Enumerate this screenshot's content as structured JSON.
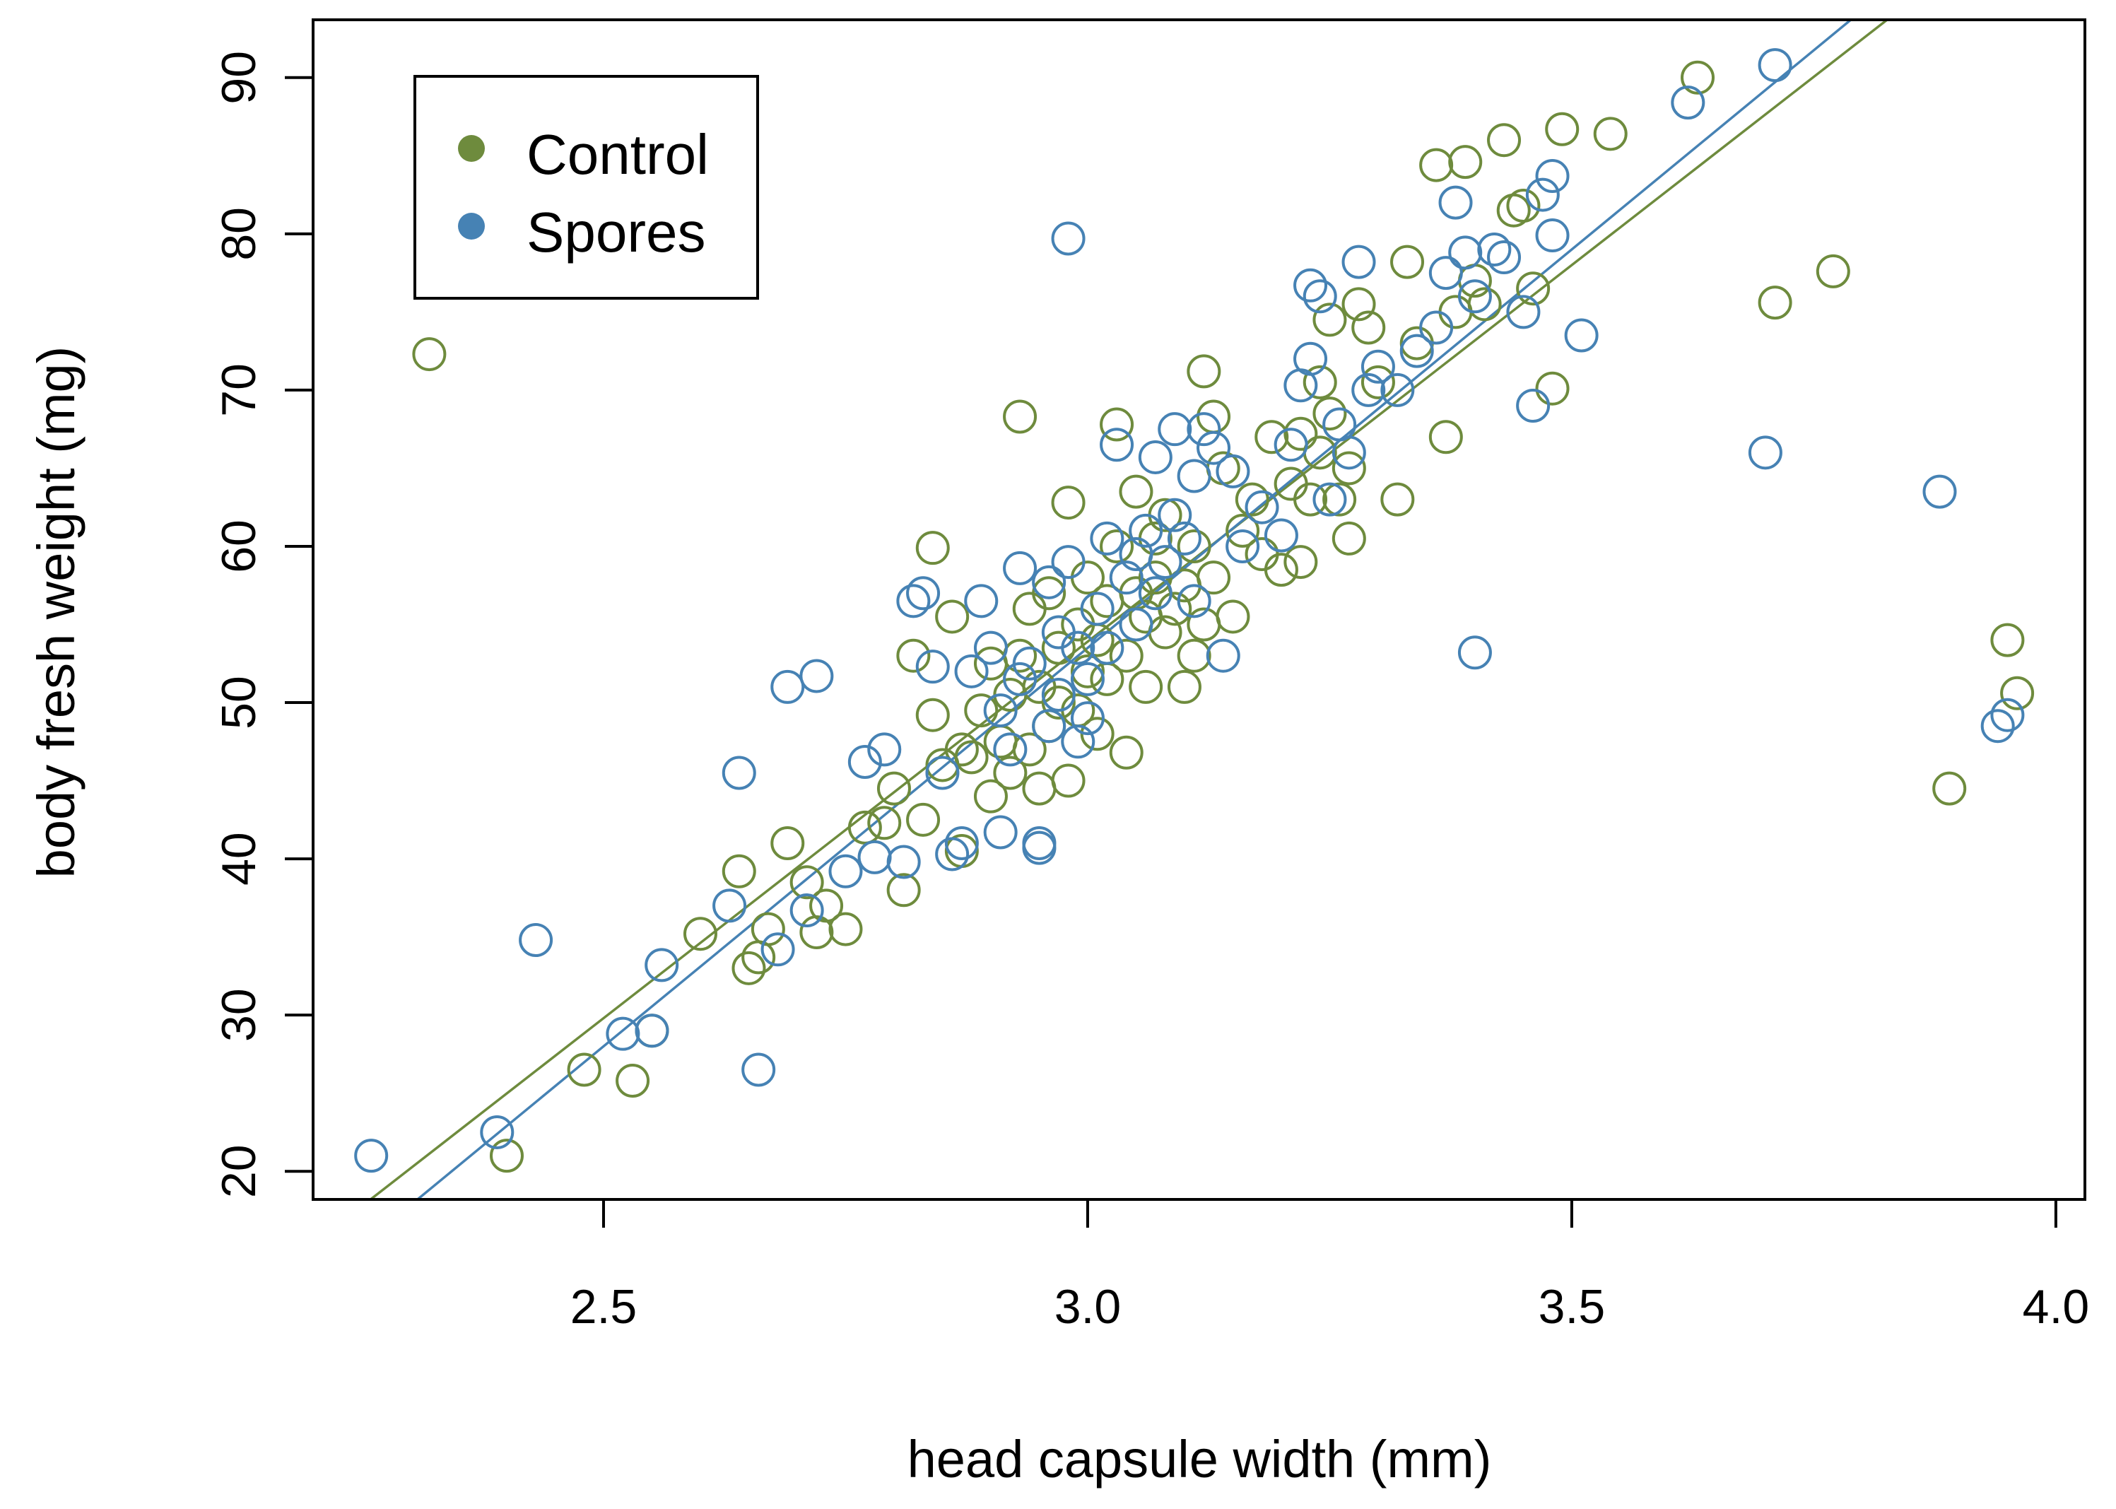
{
  "chart_data": {
    "type": "scatter",
    "title": "",
    "xlabel": "head capsule width (mm)",
    "ylabel": "body fresh weight (mg)",
    "xlim": [
      2.2,
      4.03
    ],
    "ylim": [
      18.2,
      93.7
    ],
    "x_ticks": [
      2.5,
      3.0,
      3.5,
      4.0
    ],
    "x_tick_labels": [
      "2.5",
      "3.0",
      "3.5",
      "4.0"
    ],
    "y_ticks": [
      20,
      30,
      40,
      50,
      60,
      70,
      80,
      90
    ],
    "y_tick_labels": [
      "20",
      "30",
      "40",
      "50",
      "60",
      "70",
      "80",
      "90"
    ],
    "grid": false,
    "legend_position": "top-left",
    "series": [
      {
        "name": "Control",
        "color": "#6E8B3D",
        "marker": "open-circle",
        "fit_line": {
          "slope": 48.2,
          "intercept": -90.7
        },
        "points": [
          [
            2.32,
            72.3
          ],
          [
            2.4,
            21.0
          ],
          [
            2.48,
            26.5
          ],
          [
            2.53,
            25.8
          ],
          [
            2.55,
            29.0
          ],
          [
            2.6,
            35.2
          ],
          [
            2.64,
            39.2
          ],
          [
            2.65,
            33.0
          ],
          [
            2.66,
            33.7
          ],
          [
            2.67,
            35.5
          ],
          [
            2.69,
            41.0
          ],
          [
            2.71,
            38.5
          ],
          [
            2.72,
            35.3
          ],
          [
            2.73,
            37.0
          ],
          [
            2.75,
            35.5
          ],
          [
            2.77,
            42.0
          ],
          [
            2.79,
            42.3
          ],
          [
            2.8,
            44.5
          ],
          [
            2.81,
            38.0
          ],
          [
            2.82,
            53.0
          ],
          [
            2.83,
            42.5
          ],
          [
            2.84,
            49.2
          ],
          [
            2.84,
            59.9
          ],
          [
            2.85,
            46.0
          ],
          [
            2.86,
            55.5
          ],
          [
            2.87,
            47.0
          ],
          [
            2.87,
            40.5
          ],
          [
            2.88,
            46.5
          ],
          [
            2.89,
            49.5
          ],
          [
            2.9,
            44.0
          ],
          [
            2.9,
            52.5
          ],
          [
            2.91,
            47.5
          ],
          [
            2.92,
            50.5
          ],
          [
            2.92,
            45.5
          ],
          [
            2.93,
            68.3
          ],
          [
            2.93,
            53.0
          ],
          [
            2.94,
            47.0
          ],
          [
            2.94,
            56.0
          ],
          [
            2.95,
            44.5
          ],
          [
            2.95,
            51.0
          ],
          [
            2.96,
            48.5
          ],
          [
            2.96,
            57.0
          ],
          [
            2.97,
            50.0
          ],
          [
            2.97,
            53.5
          ],
          [
            2.98,
            45.0
          ],
          [
            2.98,
            62.8
          ],
          [
            2.99,
            49.5
          ],
          [
            2.99,
            55.0
          ],
          [
            3.0,
            52.0
          ],
          [
            3.0,
            58.0
          ],
          [
            3.01,
            48.0
          ],
          [
            3.01,
            54.0
          ],
          [
            3.02,
            56.5
          ],
          [
            3.02,
            51.5
          ],
          [
            3.03,
            67.8
          ],
          [
            3.03,
            60.0
          ],
          [
            3.04,
            46.8
          ],
          [
            3.04,
            53.0
          ],
          [
            3.05,
            57.0
          ],
          [
            3.05,
            63.5
          ],
          [
            3.06,
            51.0
          ],
          [
            3.06,
            55.5
          ],
          [
            3.07,
            58.0
          ],
          [
            3.07,
            60.5
          ],
          [
            3.08,
            54.5
          ],
          [
            3.08,
            62.0
          ],
          [
            3.09,
            56.0
          ],
          [
            3.1,
            51.0
          ],
          [
            3.1,
            57.5
          ],
          [
            3.11,
            60.0
          ],
          [
            3.11,
            53.0
          ],
          [
            3.12,
            71.2
          ],
          [
            3.12,
            55.0
          ],
          [
            3.13,
            68.3
          ],
          [
            3.13,
            58.0
          ],
          [
            3.14,
            65.0
          ],
          [
            3.15,
            55.5
          ],
          [
            3.16,
            61.0
          ],
          [
            3.17,
            63.0
          ],
          [
            3.18,
            59.5
          ],
          [
            3.19,
            67.0
          ],
          [
            3.2,
            58.5
          ],
          [
            3.21,
            64.0
          ],
          [
            3.22,
            67.2
          ],
          [
            3.22,
            59.0
          ],
          [
            3.23,
            63.0
          ],
          [
            3.24,
            70.5
          ],
          [
            3.24,
            66.0
          ],
          [
            3.25,
            68.5
          ],
          [
            3.25,
            74.5
          ],
          [
            3.26,
            63.0
          ],
          [
            3.27,
            65.0
          ],
          [
            3.27,
            60.5
          ],
          [
            3.28,
            75.5
          ],
          [
            3.29,
            74.0
          ],
          [
            3.3,
            70.5
          ],
          [
            3.32,
            63.0
          ],
          [
            3.33,
            78.2
          ],
          [
            3.34,
            73.0
          ],
          [
            3.36,
            84.4
          ],
          [
            3.37,
            67.0
          ],
          [
            3.38,
            75.0
          ],
          [
            3.39,
            84.6
          ],
          [
            3.4,
            77.0
          ],
          [
            3.41,
            75.5
          ],
          [
            3.43,
            86.0
          ],
          [
            3.44,
            81.5
          ],
          [
            3.45,
            81.8
          ],
          [
            3.46,
            76.5
          ],
          [
            3.48,
            70.1
          ],
          [
            3.49,
            86.7
          ],
          [
            3.54,
            86.4
          ],
          [
            3.63,
            90.0
          ],
          [
            3.71,
            75.6
          ],
          [
            3.77,
            77.6
          ],
          [
            3.89,
            44.5
          ],
          [
            3.95,
            54.0
          ],
          [
            3.96,
            50.6
          ]
        ]
      },
      {
        "name": "Spores",
        "color": "#4682B4",
        "marker": "open-circle",
        "fit_line": {
          "slope": 51.0,
          "intercept": -99.5
        },
        "points": [
          [
            2.26,
            21.0
          ],
          [
            2.39,
            22.5
          ],
          [
            2.43,
            34.8
          ],
          [
            2.52,
            28.8
          ],
          [
            2.55,
            29.0
          ],
          [
            2.56,
            33.2
          ],
          [
            2.63,
            37.0
          ],
          [
            2.64,
            45.5
          ],
          [
            2.66,
            26.5
          ],
          [
            2.68,
            34.2
          ],
          [
            2.69,
            51.0
          ],
          [
            2.71,
            36.7
          ],
          [
            2.72,
            51.7
          ],
          [
            2.75,
            39.2
          ],
          [
            2.77,
            46.2
          ],
          [
            2.78,
            40.1
          ],
          [
            2.79,
            47.0
          ],
          [
            2.81,
            39.8
          ],
          [
            2.82,
            56.5
          ],
          [
            2.83,
            57.0
          ],
          [
            2.84,
            52.3
          ],
          [
            2.85,
            45.5
          ],
          [
            2.86,
            40.3
          ],
          [
            2.87,
            41.0
          ],
          [
            2.88,
            52.0
          ],
          [
            2.89,
            56.5
          ],
          [
            2.9,
            53.5
          ],
          [
            2.91,
            41.7
          ],
          [
            2.91,
            49.5
          ],
          [
            2.92,
            47.0
          ],
          [
            2.93,
            58.6
          ],
          [
            2.93,
            51.5
          ],
          [
            2.94,
            52.5
          ],
          [
            2.95,
            41.0
          ],
          [
            2.95,
            40.7
          ],
          [
            2.96,
            57.7
          ],
          [
            2.96,
            48.5
          ],
          [
            2.97,
            50.5
          ],
          [
            2.97,
            54.5
          ],
          [
            2.98,
            79.7
          ],
          [
            2.98,
            59.0
          ],
          [
            2.99,
            47.5
          ],
          [
            2.99,
            53.5
          ],
          [
            3.0,
            51.5
          ],
          [
            3.0,
            49.0
          ],
          [
            3.01,
            56.0
          ],
          [
            3.02,
            60.5
          ],
          [
            3.02,
            53.5
          ],
          [
            3.03,
            66.5
          ],
          [
            3.04,
            58.0
          ],
          [
            3.05,
            59.5
          ],
          [
            3.05,
            55.0
          ],
          [
            3.06,
            61.0
          ],
          [
            3.07,
            65.7
          ],
          [
            3.07,
            57.0
          ],
          [
            3.08,
            59.0
          ],
          [
            3.09,
            67.5
          ],
          [
            3.09,
            62.0
          ],
          [
            3.1,
            60.5
          ],
          [
            3.11,
            56.5
          ],
          [
            3.11,
            64.5
          ],
          [
            3.12,
            67.5
          ],
          [
            3.13,
            66.3
          ],
          [
            3.14,
            53.0
          ],
          [
            3.15,
            64.8
          ],
          [
            3.16,
            60.0
          ],
          [
            3.18,
            62.5
          ],
          [
            3.2,
            60.7
          ],
          [
            3.21,
            66.5
          ],
          [
            3.22,
            70.3
          ],
          [
            3.23,
            76.7
          ],
          [
            3.23,
            72.0
          ],
          [
            3.24,
            76.0
          ],
          [
            3.25,
            63.0
          ],
          [
            3.26,
            67.8
          ],
          [
            3.27,
            66.0
          ],
          [
            3.28,
            78.2
          ],
          [
            3.29,
            70.0
          ],
          [
            3.3,
            71.5
          ],
          [
            3.32,
            70.0
          ],
          [
            3.34,
            72.5
          ],
          [
            3.36,
            74.0
          ],
          [
            3.37,
            77.5
          ],
          [
            3.38,
            82.0
          ],
          [
            3.39,
            78.8
          ],
          [
            3.4,
            76.0
          ],
          [
            3.4,
            53.2
          ],
          [
            3.42,
            79.0
          ],
          [
            3.43,
            78.5
          ],
          [
            3.45,
            75.0
          ],
          [
            3.46,
            69.0
          ],
          [
            3.47,
            82.5
          ],
          [
            3.48,
            83.7
          ],
          [
            3.48,
            79.9
          ],
          [
            3.51,
            73.5
          ],
          [
            3.62,
            88.4
          ],
          [
            3.7,
            66.0
          ],
          [
            3.71,
            90.8
          ],
          [
            3.88,
            63.5
          ],
          [
            3.94,
            48.5
          ],
          [
            3.95,
            49.2
          ]
        ]
      }
    ]
  }
}
